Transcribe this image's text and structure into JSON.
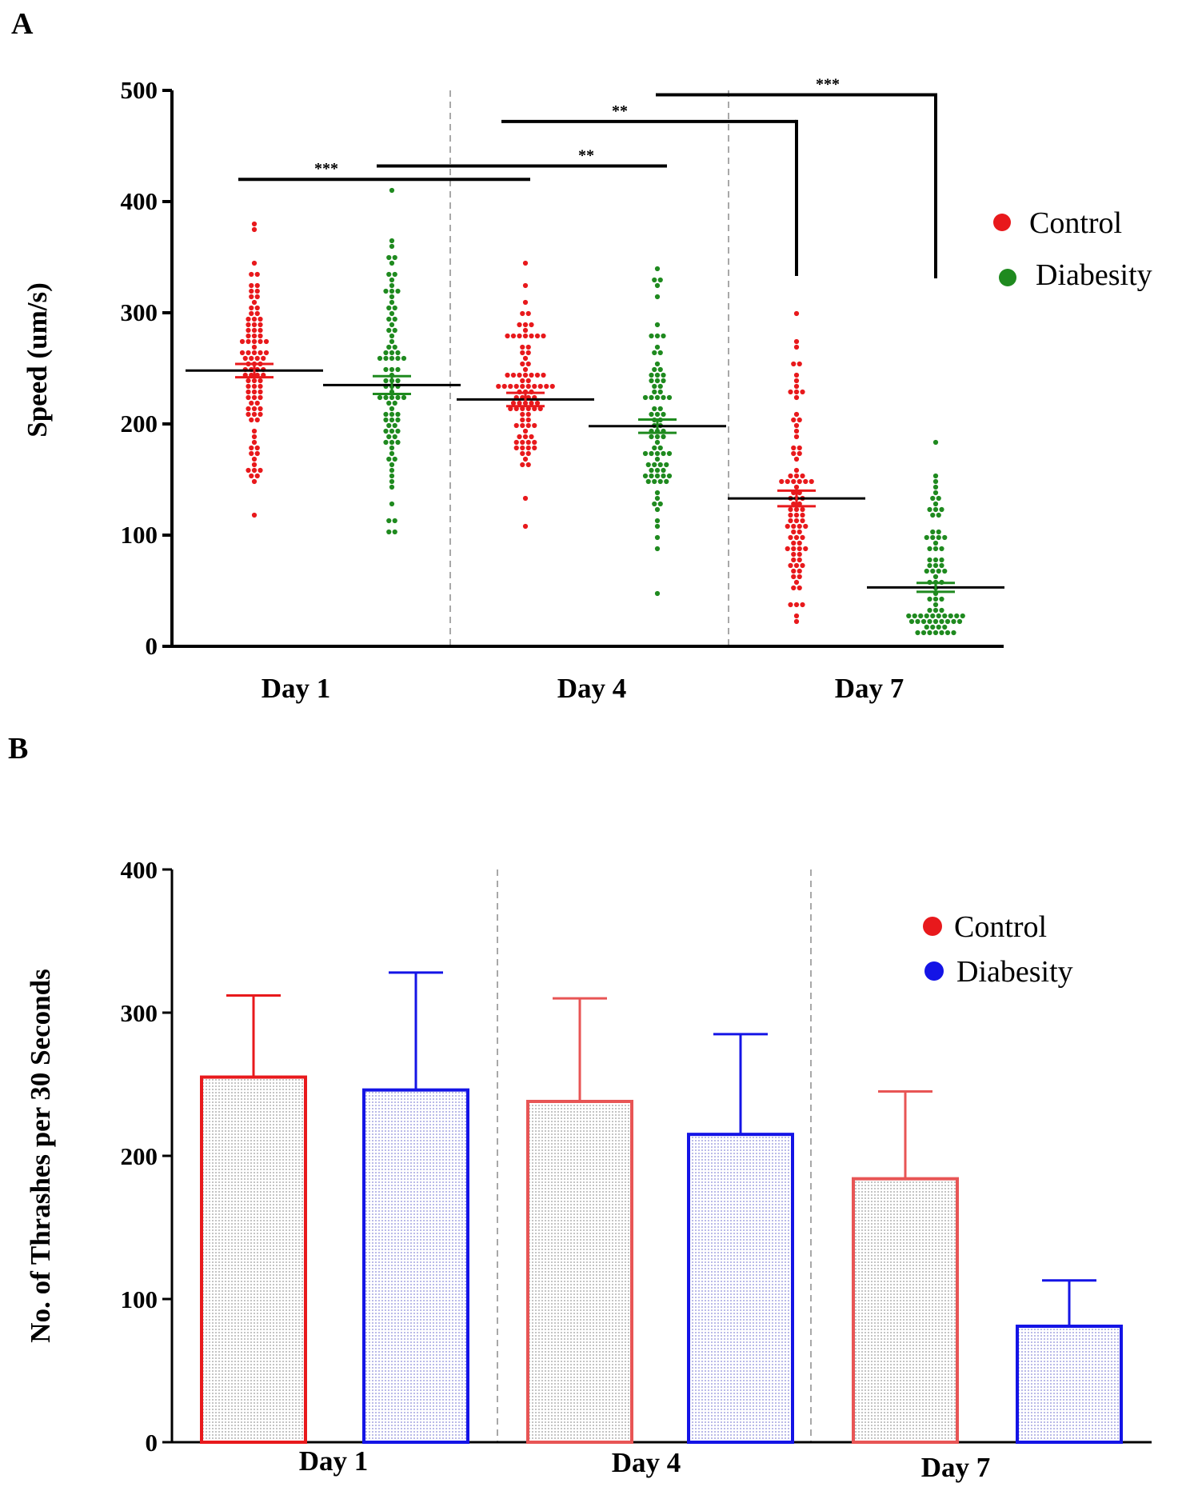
{
  "figure": {
    "label_a": "A",
    "label_b": "B"
  },
  "colors": {
    "control_a": "#e8191c",
    "diabesity_a": "#1f8a1f",
    "control_b": "#e8191c",
    "diabesity_b": "#1414e6",
    "control_b_light": "#e85555",
    "axis": "#000000",
    "divider": "#a8a8a8"
  },
  "chart_data": [
    {
      "type": "scatter",
      "panel": "A",
      "title": "",
      "xlabel": "",
      "ylabel": "Speed (um/s)",
      "ylim": [
        0,
        500
      ],
      "yticks": [
        0,
        100,
        200,
        300,
        400,
        500
      ],
      "categories": [
        "Day 1",
        "Day 4",
        "Day 7"
      ],
      "series": [
        {
          "name": "Control",
          "color": "#e8191c",
          "mean": [
            248,
            222,
            133
          ],
          "sem": [
            6,
            6,
            7
          ],
          "range": [
            [
              118,
              378
            ],
            [
              108,
              345
            ],
            [
              20,
              297
            ]
          ]
        },
        {
          "name": "Diabesity",
          "color": "#1f8a1f",
          "mean": [
            235,
            198,
            53
          ],
          "sem": [
            8,
            6,
            4
          ],
          "range": [
            [
              103,
              410
            ],
            [
              48,
              342
            ],
            [
              12,
              185
            ]
          ]
        }
      ],
      "legend": {
        "position": "right",
        "entries": [
          "Control",
          "Diabesity"
        ]
      },
      "significance": [
        {
          "label": "***",
          "from": "Day 1 Control",
          "to": "Day 4 Control",
          "y": 420
        },
        {
          "label": "**",
          "from": "Day 1 Diabesity",
          "to": "Day 4 Diabesity",
          "y": 432
        },
        {
          "label": "**",
          "from": "Day 4 Control",
          "to": "Day 7 Control",
          "y": 472
        },
        {
          "label": "***",
          "from": "Day 4 Diabesity",
          "to": "Day 7 Diabesity",
          "y": 496
        }
      ]
    },
    {
      "type": "bar",
      "panel": "B",
      "title": "",
      "xlabel": "",
      "ylabel": "No. of Thrashes per 30 Seconds",
      "ylim": [
        0,
        400
      ],
      "yticks": [
        0,
        100,
        200,
        300,
        400
      ],
      "categories": [
        "Day 1",
        "Day 4",
        "Day 7"
      ],
      "series": [
        {
          "name": "Control",
          "color": "#e8191c",
          "values": [
            255,
            238,
            184
          ],
          "error": [
            57,
            72,
            61
          ]
        },
        {
          "name": "Diabesity",
          "color": "#1414e6",
          "values": [
            246,
            215,
            81
          ],
          "error": [
            82,
            70,
            32
          ]
        }
      ],
      "legend": {
        "position": "top-right",
        "entries": [
          "Control",
          "Diabesity"
        ]
      }
    }
  ]
}
